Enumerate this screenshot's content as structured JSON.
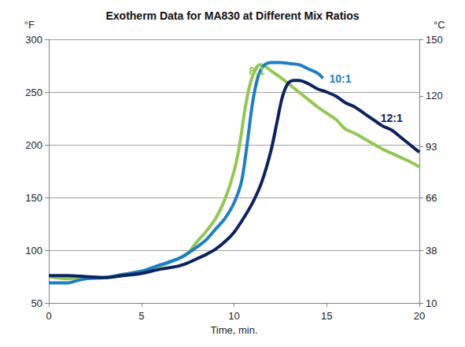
{
  "chart_data": {
    "type": "line",
    "title": "Exotherm Data for MA830 at Different Mix Ratios",
    "x_label": "Time, min.",
    "y_label": "°F",
    "y2_label": "°C",
    "xlim": [
      0,
      20
    ],
    "xticks": [
      0,
      5,
      10,
      15,
      20
    ],
    "ylim": [
      50,
      300
    ],
    "yticks": [
      50,
      100,
      150,
      200,
      250,
      300
    ],
    "y2lim": [
      10,
      150
    ],
    "y2ticks": [
      10,
      38,
      66,
      93,
      120,
      150
    ],
    "grid": true,
    "series": [
      {
        "name": "8:1",
        "color": "#92c850",
        "x": [
          0,
          1,
          2,
          3,
          4,
          5,
          6,
          7,
          7.5,
          8,
          8.5,
          9,
          9.5,
          10,
          10.3,
          10.6,
          10.9,
          11.2,
          11.4,
          11.7,
          12,
          12.5,
          13,
          13.5,
          14,
          14.5,
          15,
          15.5,
          16,
          16.5,
          17,
          17.5,
          18,
          18.5,
          19,
          19.5,
          20
        ],
        "values": [
          75,
          73,
          74,
          74,
          77,
          80,
          85,
          92,
          97,
          108,
          118,
          130,
          148,
          175,
          200,
          235,
          260,
          273,
          276,
          274,
          270,
          264,
          257,
          250,
          243,
          236,
          230,
          224,
          215,
          211,
          206,
          201,
          196,
          192,
          188,
          184,
          179
        ]
      },
      {
        "name": "10:1",
        "color": "#1a7fc8",
        "x": [
          0,
          0.5,
          1,
          1.5,
          2,
          3,
          4,
          5,
          6,
          7,
          7.5,
          8,
          8.5,
          9,
          9.5,
          10,
          10.4,
          10.7,
          11,
          11.3,
          11.6,
          12,
          12.5,
          13,
          13.5,
          14,
          14.5,
          14.8
        ],
        "values": [
          69,
          69,
          69,
          71,
          73,
          74,
          77,
          80,
          86,
          92,
          97,
          103,
          110,
          120,
          130,
          145,
          165,
          200,
          240,
          265,
          275,
          278,
          278,
          277,
          276,
          272,
          268,
          263
        ]
      },
      {
        "name": "12:1",
        "color": "#0d2260",
        "x": [
          0,
          1,
          2,
          3,
          4,
          5,
          6,
          7,
          7.5,
          8,
          8.5,
          9,
          9.5,
          10,
          10.5,
          11,
          11.5,
          12,
          12.3,
          12.6,
          12.9,
          13.2,
          13.5,
          14,
          14.5,
          15,
          15.5,
          16,
          16.5,
          17,
          17.5,
          18,
          18.5,
          19,
          19.5,
          20
        ],
        "values": [
          76,
          76,
          75,
          74,
          76,
          78,
          82,
          85,
          88,
          92,
          96,
          101,
          108,
          117,
          130,
          145,
          165,
          195,
          220,
          245,
          258,
          261,
          261,
          258,
          253,
          250,
          246,
          240,
          236,
          230,
          224,
          218,
          214,
          207,
          200,
          193
        ]
      }
    ]
  }
}
